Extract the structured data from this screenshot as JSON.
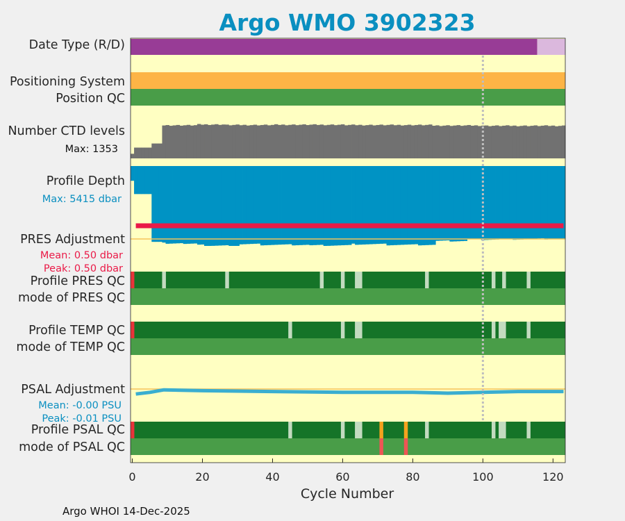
{
  "title": "Argo WMO 3902323",
  "footer": "Argo WHOI 14-Dec-2025",
  "colors": {
    "panel_bg": "#ffffc2",
    "delayed": "#983c96",
    "realtime": "#dbb8dd",
    "positioning": "#fdb446",
    "qc_good": "#499d48",
    "qc_dark_green": "#157428",
    "qc_light": "#c3dbc0",
    "qc_red": "#e8343a",
    "qc_orange": "#f6a21e",
    "qc_pink": "#ee5555",
    "ctd_gray": "#717171",
    "depth_blue": "#0093c4",
    "pres_red": "#ea1a47",
    "psal_line": "#3aaed0",
    "ref_line": "#f5c35a",
    "marker_gray": "#bebebe"
  },
  "rows": {
    "date_type": "Date Type (R/D)",
    "positioning": "Positioning System",
    "position_qc": "Position QC",
    "ctd_levels": "Number CTD levels",
    "ctd_max": "Max: 1353",
    "depth": "Profile Depth",
    "depth_max": "Max: 5415 dbar",
    "pres_adj": "PRES Adjustment",
    "pres_mean": "Mean: 0.50 dbar",
    "pres_peak": "Peak: 0.50 dbar",
    "pres_qc": "Profile PRES QC",
    "pres_mode": "mode of PRES QC",
    "temp_qc": "Profile TEMP QC",
    "temp_mode": "mode of TEMP QC",
    "psal_adj": "PSAL Adjustment",
    "psal_mean": "Mean: -0.00 PSU",
    "psal_peak": "Peak: -0.01 PSU",
    "psal_qc": "Profile PSAL QC",
    "psal_mode": "mode of PSAL QC"
  },
  "chart_data": {
    "type": "bar",
    "xlabel": "Cycle Number",
    "xlim": [
      -0.5,
      123.5
    ],
    "xticks": [
      0,
      20,
      40,
      60,
      80,
      100,
      120
    ],
    "marker_cycle": 100,
    "n_cycles": 124,
    "date_type": {
      "delayed": [
        0,
        115
      ],
      "realtime": [
        116,
        123
      ]
    },
    "ctd_levels": {
      "max": 1353,
      "values": [
        {
          "from": 0,
          "to": 0,
          "value": 180
        },
        {
          "from": 1,
          "to": 5,
          "value": 420
        },
        {
          "from": 6,
          "to": 8,
          "value": 580
        },
        {
          "from": 9,
          "to": 18,
          "value": 1290
        },
        {
          "from": 19,
          "to": 26,
          "value": 1320
        },
        {
          "from": 27,
          "to": 40,
          "value": 1300
        },
        {
          "from": 41,
          "to": 60,
          "value": 1310
        },
        {
          "from": 61,
          "to": 85,
          "value": 1300
        },
        {
          "from": 86,
          "to": 100,
          "value": 1280
        },
        {
          "from": 101,
          "to": 123,
          "value": 1270
        }
      ]
    },
    "profile_depth": {
      "max": 5415,
      "values": [
        {
          "from": 0,
          "to": 0,
          "value": 1000
        },
        {
          "from": 1,
          "to": 5,
          "value": 1900
        },
        {
          "from": 6,
          "to": 8,
          "value": 5140
        },
        {
          "from": 9,
          "to": 14,
          "value": 5230
        },
        {
          "from": 15,
          "to": 20,
          "value": 5290
        },
        {
          "from": 21,
          "to": 30,
          "value": 5410
        },
        {
          "from": 31,
          "to": 36,
          "value": 5300
        },
        {
          "from": 37,
          "to": 50,
          "value": 5340
        },
        {
          "from": 51,
          "to": 62,
          "value": 5380
        },
        {
          "from": 63,
          "to": 72,
          "value": 5300
        },
        {
          "from": 73,
          "to": 86,
          "value": 5340
        },
        {
          "from": 87,
          "to": 95,
          "value": 5080
        },
        {
          "from": 96,
          "to": 104,
          "value": 4980
        },
        {
          "from": 105,
          "to": 114,
          "value": 4960
        },
        {
          "from": 115,
          "to": 123,
          "value": 4940
        }
      ]
    },
    "pres_adjustment": {
      "mean": 0.5,
      "peak": 0.5,
      "cycles": [
        1,
        123
      ],
      "value": 0.5
    },
    "psal_adjustment": {
      "mean": -0.0,
      "peak": -0.01,
      "points": [
        [
          1,
          -0.006
        ],
        [
          5,
          -0.004
        ],
        [
          9,
          -0.001
        ],
        [
          20,
          -0.002
        ],
        [
          40,
          -0.003
        ],
        [
          60,
          -0.004
        ],
        [
          70,
          -0.004
        ],
        [
          80,
          -0.004
        ],
        [
          90,
          -0.005
        ],
        [
          100,
          -0.004
        ],
        [
          110,
          -0.003
        ],
        [
          123,
          -0.003
        ]
      ]
    },
    "pres_qc_light": [
      9,
      27,
      54,
      60,
      64,
      65,
      84,
      103,
      106,
      113
    ],
    "temp_qc_light": [
      45,
      60,
      64,
      65,
      103,
      105,
      106,
      113
    ],
    "psal_qc_light": [
      45,
      60,
      64,
      65,
      84,
      103,
      105,
      106,
      113
    ],
    "psal_qc_orange": [
      71,
      78
    ],
    "psal_mode_pink": [
      71,
      78
    ],
    "first_cycle_red": 0
  }
}
